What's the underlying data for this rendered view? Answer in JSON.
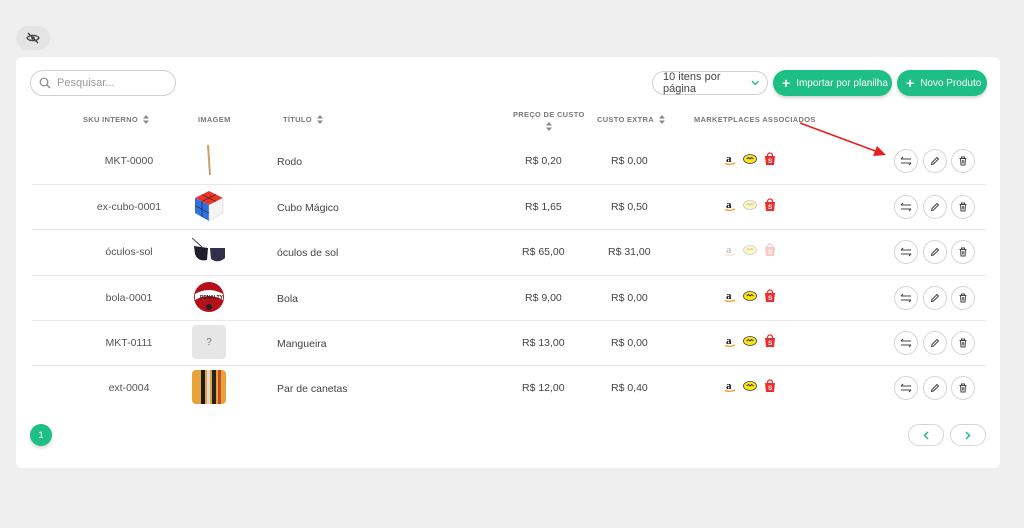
{
  "search": {
    "placeholder": "Pesquisar..."
  },
  "per_page": {
    "selected": "10 itens por página"
  },
  "buttons": {
    "import": "Importar por planilha",
    "new_product": "Novo Produto"
  },
  "columns": {
    "sku": "SKU INTERNO",
    "image": "IMAGEM",
    "title": "TÍTULO",
    "cost_line1": "PREÇO DE CUSTO",
    "extra": "CUSTO EXTRA",
    "marketplaces": "MARKETPLACES ASSOCIADOS"
  },
  "rows": [
    {
      "sku": "MKT-0000",
      "title": "Rodo",
      "cost": "R$ 0,20",
      "extra": "R$ 0,00",
      "image_icon": "squeegee-image",
      "marketplaces_active": true
    },
    {
      "sku": "ex-cubo-0001",
      "title": "Cubo Mágico",
      "cost": "R$ 1,65",
      "extra": "R$ 0,50",
      "image_icon": "rubiks-cube-image",
      "marketplaces_active": true
    },
    {
      "sku": "óculos-sol",
      "title": "óculos de sol",
      "cost": "R$ 65,00",
      "extra": "R$ 31,00",
      "image_icon": "sunglasses-image",
      "marketplaces_active": false
    },
    {
      "sku": "bola-0001",
      "title": "Bola",
      "cost": "R$ 9,00",
      "extra": "R$ 0,00",
      "image_icon": "ball-image",
      "marketplaces_active": true
    },
    {
      "sku": "MKT-0111",
      "title": "Mangueira",
      "cost": "R$ 13,00",
      "extra": "R$ 0,00",
      "image_icon": "placeholder-image",
      "placeholder_text": "?",
      "marketplaces_active": true
    },
    {
      "sku": "ext-0004",
      "title": "Par de canetas",
      "cost": "R$ 12,00",
      "extra": "R$ 0,40",
      "image_icon": "pens-image",
      "marketplaces_active": true
    }
  ],
  "marketplace_icons": [
    "amazon-icon",
    "mercado-livre-icon",
    "shopee-icon"
  ],
  "pagination": {
    "current": "1"
  },
  "colors": {
    "accent": "#1dbf84",
    "annotation_arrow": "#e62020"
  }
}
